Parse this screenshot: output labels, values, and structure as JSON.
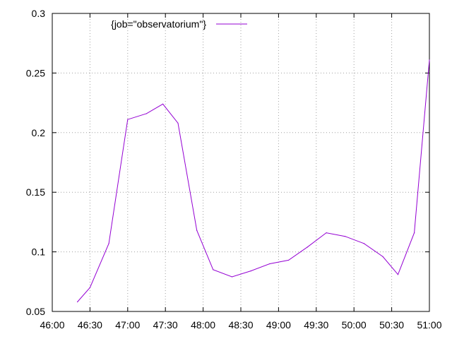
{
  "chart_data": {
    "type": "line",
    "title": "",
    "xlabel": "",
    "ylabel": "",
    "xlim": [
      "46:00",
      "51:00"
    ],
    "ylim": [
      0.05,
      0.3
    ],
    "grid": true,
    "legend_position": "top-left",
    "x_ticks": [
      "46:00",
      "46:30",
      "47:00",
      "47:30",
      "48:00",
      "48:30",
      "49:00",
      "49:30",
      "50:00",
      "50:30",
      "51:00"
    ],
    "y_ticks": [
      "0.05",
      "0.1",
      "0.15",
      "0.2",
      "0.25",
      "0.3"
    ],
    "series": [
      {
        "name": "{job=\"observatorium\"}",
        "color": "#9400d3",
        "x": [
          "46:20",
          "46:30",
          "46:45",
          "47:00",
          "47:15",
          "47:28",
          "47:40",
          "47:55",
          "48:08",
          "48:23",
          "48:38",
          "48:53",
          "49:08",
          "49:23",
          "49:38",
          "49:53",
          "50:08",
          "50:23",
          "50:35",
          "50:48",
          "51:00"
        ],
        "y": [
          0.058,
          0.07,
          0.107,
          0.211,
          0.216,
          0.224,
          0.208,
          0.118,
          0.085,
          0.079,
          0.084,
          0.09,
          0.093,
          0.104,
          0.116,
          0.113,
          0.107,
          0.096,
          0.081,
          0.116,
          0.261
        ]
      }
    ]
  }
}
